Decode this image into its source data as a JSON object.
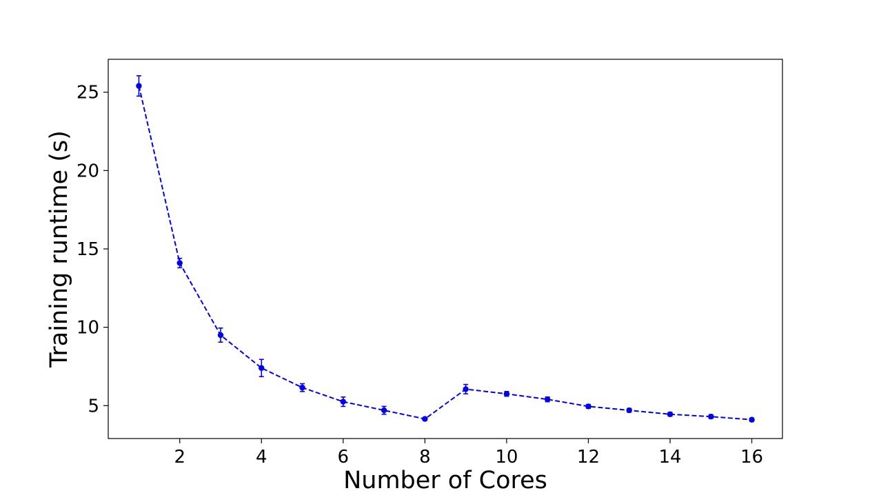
{
  "chart_data": {
    "type": "line",
    "title": "",
    "xlabel": "Number of Cores",
    "ylabel": "Training runtime (s)",
    "xlim": [
      0.25,
      16.75
    ],
    "ylim": [
      2.9,
      27.1
    ],
    "xticks": [
      2,
      4,
      6,
      8,
      10,
      12,
      14,
      16
    ],
    "yticks": [
      5,
      10,
      15,
      20,
      25
    ],
    "grid": false,
    "legend": "none",
    "series": [
      {
        "color": "#0000ee",
        "line_style": "dashed",
        "marker": "circle",
        "x": [
          1,
          2,
          3,
          4,
          5,
          6,
          7,
          8,
          9,
          10,
          11,
          12,
          13,
          14,
          15,
          16
        ],
        "y": [
          25.4,
          14.1,
          9.5,
          7.4,
          6.15,
          5.25,
          4.7,
          4.15,
          6.05,
          5.75,
          5.4,
          4.95,
          4.7,
          4.45,
          4.3,
          4.1
        ],
        "error": [
          0.65,
          0.3,
          0.45,
          0.55,
          0.25,
          0.3,
          0.25,
          0.1,
          0.3,
          0.15,
          0.15,
          0.12,
          0.12,
          0.12,
          0.12,
          0.1
        ]
      }
    ]
  }
}
